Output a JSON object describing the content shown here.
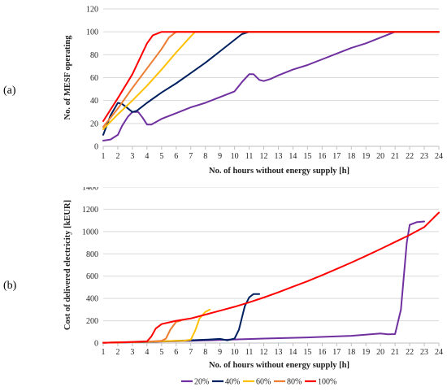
{
  "figure": {
    "panel_a_label": "(a)",
    "panel_b_label": "(b)"
  },
  "chart_data": [
    {
      "type": "line",
      "panel": "a",
      "xlabel": "No. of hours without energy supply [h]",
      "ylabel": "No. of MESF operating",
      "x": [
        1,
        2,
        3,
        4,
        5,
        6,
        7,
        8,
        9,
        10,
        11,
        12,
        13,
        14,
        15,
        16,
        17,
        18,
        19,
        20,
        21,
        22,
        23,
        24
      ],
      "xlim": [
        1,
        24
      ],
      "ylim": [
        0,
        120
      ],
      "yticks": [
        0,
        20,
        40,
        60,
        80,
        100,
        120
      ],
      "grid": "horizontal",
      "series": [
        {
          "name": "20%",
          "color": "#7030a0",
          "points": [
            [
              1,
              5
            ],
            [
              1.5,
              6
            ],
            [
              2,
              10
            ],
            [
              2.3,
              18
            ],
            [
              2.7,
              26
            ],
            [
              3,
              30
            ],
            [
              3.4,
              30
            ],
            [
              3.7,
              25
            ],
            [
              4,
              19
            ],
            [
              4.3,
              19
            ],
            [
              5,
              24
            ],
            [
              6,
              29
            ],
            [
              7,
              34
            ],
            [
              8,
              38
            ],
            [
              9,
              43
            ],
            [
              10,
              48
            ],
            [
              10.5,
              56
            ],
            [
              11,
              63
            ],
            [
              11.3,
              63
            ],
            [
              11.7,
              58
            ],
            [
              12,
              57
            ],
            [
              12.5,
              59
            ],
            [
              13,
              62
            ],
            [
              14,
              67
            ],
            [
              15,
              71
            ],
            [
              16,
              76
            ],
            [
              17,
              81
            ],
            [
              18,
              86
            ],
            [
              19,
              90
            ],
            [
              20,
              95
            ],
            [
              21,
              100
            ],
            [
              22,
              100
            ],
            [
              23,
              100
            ],
            [
              24,
              100
            ]
          ]
        },
        {
          "name": "40%",
          "color": "#002060",
          "points": [
            [
              1,
              10
            ],
            [
              1.5,
              27
            ],
            [
              2,
              38
            ],
            [
              2.3,
              37
            ],
            [
              2.6,
              34
            ],
            [
              3,
              30
            ],
            [
              3.3,
              31
            ],
            [
              4,
              38
            ],
            [
              5,
              47
            ],
            [
              6,
              55
            ],
            [
              7,
              64
            ],
            [
              8,
              73
            ],
            [
              9,
              83
            ],
            [
              10,
              93
            ],
            [
              10.5,
              98
            ],
            [
              11,
              100
            ],
            [
              11.5,
              100
            ],
            [
              12,
              100
            ],
            [
              24,
              100
            ]
          ]
        },
        {
          "name": "60%",
          "color": "#ffc000",
          "points": [
            [
              1,
              15
            ],
            [
              2,
              28
            ],
            [
              3,
              40
            ],
            [
              4,
              53
            ],
            [
              5,
              67
            ],
            [
              6,
              82
            ],
            [
              7,
              96
            ],
            [
              7.3,
              100
            ],
            [
              8,
              100
            ],
            [
              24,
              100
            ]
          ]
        },
        {
          "name": "80%",
          "color": "#ed7d31",
          "points": [
            [
              1,
              17
            ],
            [
              2,
              33
            ],
            [
              3,
              51
            ],
            [
              4,
              68
            ],
            [
              5,
              85
            ],
            [
              5.5,
              95
            ],
            [
              6,
              100
            ],
            [
              24,
              100
            ]
          ]
        },
        {
          "name": "100%",
          "color": "#ff0000",
          "points": [
            [
              1,
              22
            ],
            [
              2,
              42
            ],
            [
              3,
              63
            ],
            [
              4,
              90
            ],
            [
              4.4,
              97
            ],
            [
              5,
              100
            ],
            [
              24,
              100
            ]
          ]
        }
      ]
    },
    {
      "type": "line",
      "panel": "b",
      "xlabel": "No. of hours without energy supply [h]",
      "ylabel": "Cost of delivered electricity [kEUR]",
      "x": [
        1,
        2,
        3,
        4,
        5,
        6,
        7,
        8,
        9,
        10,
        11,
        12,
        13,
        14,
        15,
        16,
        17,
        18,
        19,
        20,
        21,
        22,
        23,
        24
      ],
      "xlim": [
        1,
        24
      ],
      "ylim": [
        0,
        1400
      ],
      "yticks": [
        0,
        200,
        400,
        600,
        800,
        1000,
        1200,
        1400
      ],
      "grid": "horizontal",
      "legend_position": "bottom",
      "series": [
        {
          "name": "20%",
          "color": "#7030a0",
          "points": [
            [
              1,
              3
            ],
            [
              4,
              10
            ],
            [
              7,
              20
            ],
            [
              10,
              32
            ],
            [
              12,
              40
            ],
            [
              15,
              50
            ],
            [
              18,
              65
            ],
            [
              20,
              85
            ],
            [
              20.5,
              78
            ],
            [
              21,
              80
            ],
            [
              21.4,
              300
            ],
            [
              21.8,
              900
            ],
            [
              22,
              1060
            ],
            [
              22.5,
              1085
            ],
            [
              23,
              1090
            ]
          ]
        },
        {
          "name": "40%",
          "color": "#002060",
          "points": [
            [
              1,
              3
            ],
            [
              4,
              10
            ],
            [
              6,
              20
            ],
            [
              7,
              25
            ],
            [
              8,
              30
            ],
            [
              9,
              37
            ],
            [
              9.5,
              25
            ],
            [
              10,
              40
            ],
            [
              10.3,
              120
            ],
            [
              10.7,
              330
            ],
            [
              11,
              410
            ],
            [
              11.3,
              440
            ],
            [
              11.7,
              440
            ]
          ]
        },
        {
          "name": "60%",
          "color": "#ffc000",
          "points": [
            [
              1,
              3
            ],
            [
              3,
              8
            ],
            [
              5,
              15
            ],
            [
              6,
              20
            ],
            [
              6.5,
              20
            ],
            [
              7,
              30
            ],
            [
              7.3,
              110
            ],
            [
              7.6,
              220
            ],
            [
              8,
              280
            ],
            [
              8.3,
              300
            ]
          ]
        },
        {
          "name": "80%",
          "color": "#ed7d31",
          "points": [
            [
              1,
              3
            ],
            [
              3,
              8
            ],
            [
              4,
              12
            ],
            [
              5,
              20
            ],
            [
              5.3,
              40
            ],
            [
              5.6,
              120
            ],
            [
              6,
              190
            ],
            [
              6.3,
              200
            ]
          ]
        },
        {
          "name": "100%",
          "color": "#ff0000",
          "points": [
            [
              1,
              3
            ],
            [
              2,
              6
            ],
            [
              3,
              10
            ],
            [
              4,
              15
            ],
            [
              4.3,
              60
            ],
            [
              4.6,
              130
            ],
            [
              5,
              170
            ],
            [
              5.5,
              185
            ],
            [
              6,
              200
            ],
            [
              7,
              220
            ],
            [
              8,
              255
            ],
            [
              9,
              290
            ],
            [
              10,
              325
            ],
            [
              11,
              365
            ],
            [
              12,
              408
            ],
            [
              13,
              455
            ],
            [
              14,
              505
            ],
            [
              15,
              555
            ],
            [
              16,
              608
            ],
            [
              17,
              665
            ],
            [
              18,
              722
            ],
            [
              19,
              782
            ],
            [
              20,
              843
            ],
            [
              21,
              906
            ],
            [
              22,
              970
            ],
            [
              23,
              1040
            ],
            [
              24,
              1170
            ]
          ]
        }
      ]
    }
  ]
}
